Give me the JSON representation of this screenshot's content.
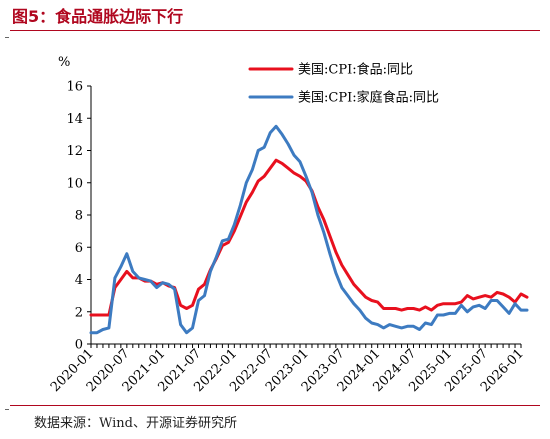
{
  "figure": {
    "title": "图5：食品通胀边际下行",
    "source": "数据来源：Wind、开源证券研究所"
  },
  "chart_data": {
    "type": "line",
    "title": "",
    "ylabel": "%",
    "xlabel": "",
    "ylim": [
      0,
      16
    ],
    "yticks": [
      "0",
      "2",
      "4",
      "6",
      "8",
      "10",
      "12",
      "14",
      "16"
    ],
    "xtick_labels": [
      "2020-01",
      "2020-07",
      "2021-01",
      "2021-07",
      "2022-01",
      "2022-07",
      "2023-01",
      "2023-07",
      "2024-01",
      "2024-07",
      "2025-01",
      "2025-07",
      "2026-01"
    ],
    "x_start": "2020-01",
    "x_end": "2026-01",
    "grid": false,
    "legend_position": "top-right",
    "series": [
      {
        "name": "美国:CPI:食品:同比",
        "color": "#e8101e",
        "values": [
          1.8,
          1.8,
          1.8,
          1.8,
          3.5,
          4.0,
          4.5,
          4.1,
          4.1,
          3.9,
          3.9,
          3.7,
          3.8,
          3.6,
          3.5,
          2.4,
          2.2,
          2.4,
          3.4,
          3.7,
          4.6,
          5.3,
          6.1,
          6.3,
          7.0,
          7.9,
          8.8,
          9.4,
          10.1,
          10.4,
          10.9,
          11.4,
          11.2,
          10.9,
          10.6,
          10.4,
          10.1,
          9.5,
          8.5,
          7.7,
          6.7,
          5.7,
          4.9,
          4.3,
          3.7,
          3.3,
          2.9,
          2.7,
          2.6,
          2.2,
          2.2,
          2.2,
          2.1,
          2.2,
          2.2,
          2.1,
          2.3,
          2.1,
          2.4,
          2.5,
          2.5,
          2.5,
          2.6,
          3.0,
          2.8,
          2.9,
          3.0,
          2.9,
          3.2,
          3.1,
          2.9,
          2.6,
          3.1,
          2.9
        ]
      },
      {
        "name": "美国:CPI:家庭食品:同比",
        "color": "#3d7bc1",
        "values": [
          0.7,
          0.7,
          0.9,
          1.0,
          4.1,
          4.8,
          5.6,
          4.5,
          4.1,
          4.0,
          3.9,
          3.5,
          3.8,
          3.7,
          3.4,
          1.2,
          0.7,
          1.0,
          2.7,
          3.0,
          4.5,
          5.4,
          6.4,
          6.5,
          7.4,
          8.6,
          10.0,
          10.8,
          12.0,
          12.2,
          13.1,
          13.5,
          13.0,
          12.4,
          11.7,
          11.3,
          10.4,
          9.4,
          8.0,
          6.9,
          5.6,
          4.4,
          3.5,
          3.0,
          2.5,
          2.1,
          1.6,
          1.3,
          1.2,
          1.0,
          1.2,
          1.1,
          1.0,
          1.1,
          1.1,
          0.9,
          1.3,
          1.2,
          1.8,
          1.8,
          1.9,
          1.9,
          2.4,
          2.0,
          2.3,
          2.4,
          2.2,
          2.7,
          2.7,
          2.3,
          1.9,
          2.5,
          2.1,
          2.1
        ]
      }
    ]
  }
}
